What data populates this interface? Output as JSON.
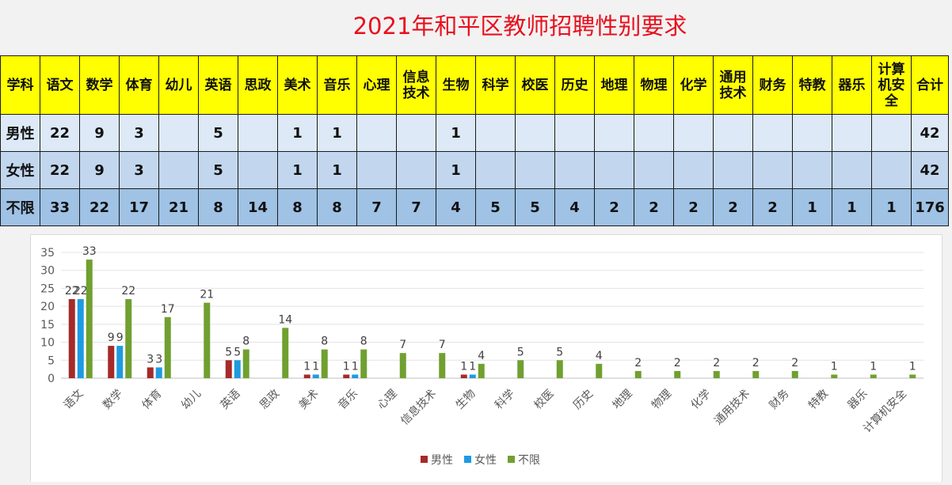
{
  "title": "2021年和平区教师招聘性别要求",
  "table": {
    "header": [
      "学科",
      "语文",
      "数学",
      "体育",
      "幼儿",
      "英语",
      "思政",
      "美术",
      "音乐",
      "心理",
      "信息\n技术",
      "生物",
      "科学",
      "校医",
      "历史",
      "地理",
      "物理",
      "化学",
      "通用\n技术",
      "财务",
      "特教",
      "器乐",
      "计算\n机安\n全",
      "合计"
    ],
    "rows": [
      [
        "男性",
        "22",
        "9",
        "3",
        "",
        "5",
        "",
        "1",
        "1",
        "",
        "",
        "1",
        "",
        "",
        "",
        "",
        "",
        "",
        "",
        "",
        "",
        "",
        "",
        "42"
      ],
      [
        "女性",
        "22",
        "9",
        "3",
        "",
        "5",
        "",
        "1",
        "1",
        "",
        "",
        "1",
        "",
        "",
        "",
        "",
        "",
        "",
        "",
        "",
        "",
        "",
        "",
        "42"
      ],
      [
        "不限",
        "33",
        "22",
        "17",
        "21",
        "8",
        "14",
        "8",
        "8",
        "7",
        "7",
        "4",
        "5",
        "5",
        "4",
        "2",
        "2",
        "2",
        "2",
        "2",
        "1",
        "1",
        "1",
        "176"
      ]
    ]
  },
  "chart_data": {
    "type": "bar",
    "categories": [
      "语文",
      "数学",
      "体育",
      "幼儿",
      "英语",
      "思政",
      "美术",
      "音乐",
      "心理",
      "信息技术",
      "生物",
      "科学",
      "校医",
      "历史",
      "地理",
      "物理",
      "化学",
      "通用技术",
      "财务",
      "特教",
      "器乐",
      "计算机安全"
    ],
    "series": [
      {
        "name": "男性",
        "color": "#a52a2a",
        "values": [
          22,
          9,
          3,
          null,
          5,
          null,
          1,
          1,
          null,
          null,
          1,
          null,
          null,
          null,
          null,
          null,
          null,
          null,
          null,
          null,
          null,
          null
        ]
      },
      {
        "name": "女性",
        "color": "#1e9be0",
        "values": [
          22,
          9,
          3,
          null,
          5,
          null,
          1,
          1,
          null,
          null,
          1,
          null,
          null,
          null,
          null,
          null,
          null,
          null,
          null,
          null,
          null,
          null
        ]
      },
      {
        "name": "不限",
        "color": "#70a030",
        "values": [
          33,
          22,
          17,
          21,
          8,
          14,
          8,
          8,
          7,
          7,
          4,
          5,
          5,
          4,
          2,
          2,
          2,
          2,
          2,
          1,
          1,
          1
        ]
      }
    ],
    "ylim": [
      0,
      35
    ],
    "yticks": [
      0,
      5,
      10,
      15,
      20,
      25,
      30,
      35
    ],
    "grid": true,
    "legend": "bottom"
  }
}
